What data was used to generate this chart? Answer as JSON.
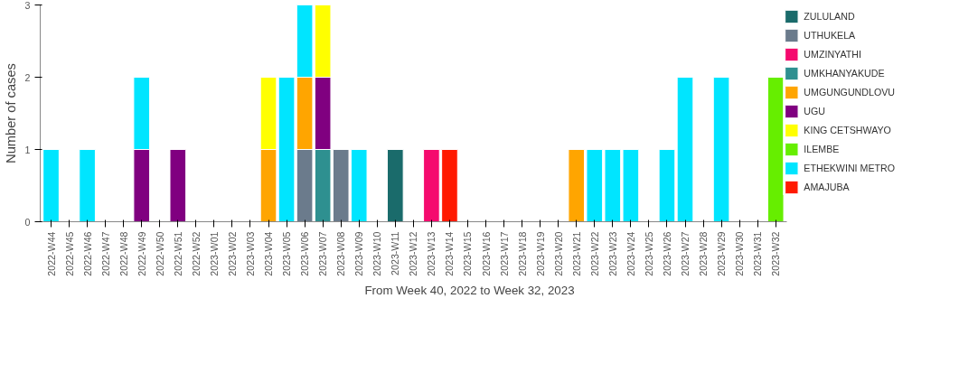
{
  "chart_data": {
    "type": "bar",
    "stacked": true,
    "xlabel": "From Week 40, 2022 to Week 32, 2023",
    "ylabel": "Number of cases",
    "categories": [
      "2022-W44",
      "2022-W45",
      "2022-W46",
      "2022-W47",
      "2022-W48",
      "2022-W49",
      "2022-W50",
      "2022-W51",
      "2022-W52",
      "2023-W01",
      "2023-W02",
      "2023-W03",
      "2023-W04",
      "2023-W05",
      "2023-W06",
      "2023-W07",
      "2023-W08",
      "2023-W09",
      "2023-W10",
      "2023-W11",
      "2023-W12",
      "2023-W13",
      "2023-W14",
      "2023-W15",
      "2023-W16",
      "2023-W17",
      "2023-W18",
      "2023-W19",
      "2023-W20",
      "2023-W21",
      "2023-W22",
      "2023-W23",
      "2023-W24",
      "2023-W25",
      "2023-W26",
      "2023-W27",
      "2023-W28",
      "2023-W29",
      "2023-W30",
      "2023-W31",
      "2023-W32"
    ],
    "ylim": [
      0,
      3
    ],
    "yticks": [
      0,
      1,
      2,
      3
    ],
    "grid": false,
    "legend": "right",
    "series": [
      {
        "name": "ZULULAND",
        "color": "#1a6b6b",
        "values": [
          0,
          0,
          0,
          0,
          0,
          0,
          0,
          0,
          0,
          0,
          0,
          0,
          0,
          0,
          0,
          0,
          0,
          0,
          0,
          1,
          0,
          0,
          0,
          0,
          0,
          0,
          0,
          0,
          0,
          0,
          0,
          0,
          0,
          0,
          0,
          0,
          0,
          0,
          0,
          0,
          0
        ]
      },
      {
        "name": "UTHUKELA",
        "color": "#6b7b8c",
        "values": [
          0,
          0,
          0,
          0,
          0,
          0,
          0,
          0,
          0,
          0,
          0,
          0,
          0,
          0,
          1,
          0,
          1,
          0,
          0,
          0,
          0,
          0,
          0,
          0,
          0,
          0,
          0,
          0,
          0,
          0,
          0,
          0,
          0,
          0,
          0,
          0,
          0,
          0,
          0,
          0,
          0
        ]
      },
      {
        "name": "UMZINYATHI",
        "color": "#f50a6e",
        "values": [
          0,
          0,
          0,
          0,
          0,
          0,
          0,
          0,
          0,
          0,
          0,
          0,
          0,
          0,
          0,
          0,
          0,
          0,
          0,
          0,
          0,
          1,
          0,
          0,
          0,
          0,
          0,
          0,
          0,
          0,
          0,
          0,
          0,
          0,
          0,
          0,
          0,
          0,
          0,
          0,
          0
        ]
      },
      {
        "name": "UMKHANYAKUDE",
        "color": "#2e9090",
        "values": [
          0,
          0,
          0,
          0,
          0,
          0,
          0,
          0,
          0,
          0,
          0,
          0,
          0,
          0,
          0,
          1,
          0,
          0,
          0,
          0,
          0,
          0,
          0,
          0,
          0,
          0,
          0,
          0,
          0,
          0,
          0,
          0,
          0,
          0,
          0,
          0,
          0,
          0,
          0,
          0,
          0
        ]
      },
      {
        "name": "UMGUNGUNDLOVU",
        "color": "#ffa500",
        "values": [
          0,
          0,
          0,
          0,
          0,
          0,
          0,
          0,
          0,
          0,
          0,
          0,
          1,
          0,
          1,
          0,
          0,
          0,
          0,
          0,
          0,
          0,
          0,
          0,
          0,
          0,
          0,
          0,
          0,
          1,
          0,
          0,
          0,
          0,
          0,
          0,
          0,
          0,
          0,
          0,
          0
        ]
      },
      {
        "name": "UGU",
        "color": "#800080",
        "values": [
          0,
          0,
          0,
          0,
          0,
          1,
          0,
          1,
          0,
          0,
          0,
          0,
          0,
          0,
          0,
          1,
          0,
          0,
          0,
          0,
          0,
          0,
          0,
          0,
          0,
          0,
          0,
          0,
          0,
          0,
          0,
          0,
          0,
          0,
          0,
          0,
          0,
          0,
          0,
          0,
          0
        ]
      },
      {
        "name": "KING CETSHWAYO",
        "color": "#ffff00",
        "values": [
          0,
          0,
          0,
          0,
          0,
          0,
          0,
          0,
          0,
          0,
          0,
          0,
          1,
          0,
          0,
          1,
          0,
          0,
          0,
          0,
          0,
          0,
          0,
          0,
          0,
          0,
          0,
          0,
          0,
          0,
          0,
          0,
          0,
          0,
          0,
          0,
          0,
          0,
          0,
          0,
          0
        ]
      },
      {
        "name": "ILEMBE",
        "color": "#66ee00",
        "values": [
          0,
          0,
          0,
          0,
          0,
          0,
          0,
          0,
          0,
          0,
          0,
          0,
          0,
          0,
          0,
          0,
          0,
          0,
          0,
          0,
          0,
          0,
          0,
          0,
          0,
          0,
          0,
          0,
          0,
          0,
          0,
          0,
          0,
          0,
          0,
          0,
          0,
          0,
          0,
          0,
          2
        ]
      },
      {
        "name": "ETHEKWINI METRO",
        "color": "#00e5ff",
        "values": [
          1,
          0,
          1,
          0,
          0,
          1,
          0,
          0,
          0,
          0,
          0,
          0,
          0,
          2,
          1,
          0,
          0,
          1,
          0,
          0,
          0,
          0,
          0,
          0,
          0,
          0,
          0,
          0,
          0,
          0,
          1,
          1,
          1,
          0,
          1,
          2,
          0,
          2,
          0,
          0,
          0
        ]
      },
      {
        "name": "AMAJUBA",
        "color": "#ff1a00",
        "values": [
          0,
          0,
          0,
          0,
          0,
          0,
          0,
          0,
          0,
          0,
          0,
          0,
          0,
          0,
          0,
          0,
          0,
          0,
          0,
          0,
          0,
          0,
          1,
          0,
          0,
          0,
          0,
          0,
          0,
          0,
          0,
          0,
          0,
          0,
          0,
          0,
          0,
          0,
          0,
          0,
          0
        ]
      }
    ]
  }
}
